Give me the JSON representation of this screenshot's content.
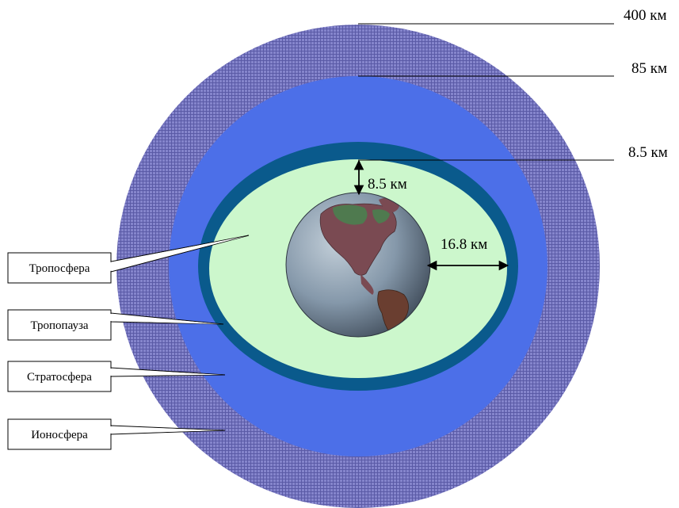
{
  "altitude_labels": {
    "ionosphere_top": "400 км",
    "stratosphere_top": "85 км",
    "tropopause_top": "8.5 км"
  },
  "dimension_labels": {
    "polar_thickness": "8.5 км",
    "equatorial_thickness": "16.8 км"
  },
  "layer_labels": {
    "troposphere": "Тропосфера",
    "tropopause": "Тропопауза",
    "stratosphere": "Стратосфера",
    "ionosphere": "Ионосфера"
  },
  "colors": {
    "ionosphere": "#7a7ac4",
    "stratosphere": "#4a6ee6",
    "tropopause": "#075a8c",
    "troposphere": "#ccf7cc",
    "earth_ocean": "#7f94a8",
    "earth_land": "#7a4a4a"
  },
  "icons": {
    "earth": "earth-globe-icon"
  }
}
